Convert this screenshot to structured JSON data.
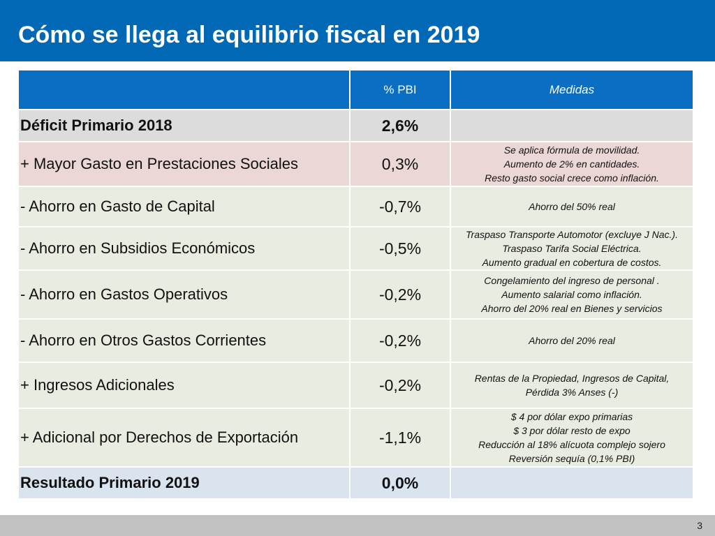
{
  "slide": {
    "title": "Cómo se llega al equilibrio fiscal en 2019",
    "page_number": "3"
  },
  "table": {
    "header": {
      "col1": "",
      "col2": "% PBI",
      "col3": "Medidas"
    },
    "rows": [
      {
        "label": "Déficit Primario 2018",
        "value": "2,6%",
        "medidas": [],
        "bold": true,
        "color": "#dcdcdc"
      },
      {
        "label": "+ Mayor Gasto en Prestaciones Sociales",
        "value": "0,3%",
        "medidas": [
          "Se aplica fórmula de movilidad.",
          "Aumento de 2% en cantidades.",
          "Resto gasto social crece como inflación."
        ],
        "bold": false,
        "color": "#ecd7d7"
      },
      {
        "label": "- Ahorro en Gasto de Capital",
        "value": "-0,7%",
        "medidas": [
          "Ahorro del 50% real"
        ],
        "bold": false,
        "color": "#e9ece0"
      },
      {
        "label": "- Ahorro en Subsidios Económicos",
        "value": "-0,5%",
        "medidas": [
          "Traspaso Transporte Automotor (excluye J Nac.).",
          "Traspaso Tarifa Social Eléctrica.",
          "Aumento gradual en cobertura de costos."
        ],
        "bold": false,
        "color": "#e9ece0"
      },
      {
        "label": "- Ahorro en Gastos Operativos",
        "value": "-0,2%",
        "medidas": [
          "Congelamiento del ingreso de personal .",
          "Aumento salarial como inflación.",
          "Ahorro del 20% real en Bienes y servicios"
        ],
        "bold": false,
        "color": "#e9ece0"
      },
      {
        "label": "- Ahorro en Otros Gastos Corrientes",
        "value": "-0,2%",
        "medidas": [
          "Ahorro del 20% real"
        ],
        "bold": false,
        "color": "#e9ece0"
      },
      {
        "label": "+ Ingresos Adicionales",
        "value": "-0,2%",
        "medidas": [
          "Rentas de la Propiedad, Ingresos de Capital,",
          "Pérdida 3% Anses (-)"
        ],
        "bold": false,
        "color": "#e9ece0"
      },
      {
        "label": "+ Adicional por Derechos de Exportación",
        "value": "-1,1%",
        "medidas": [
          "$ 4 por dólar expo primarias",
          "$ 3 por dólar resto de expo",
          "Reducción al 18% alícuota complejo sojero",
          "Reversión sequía (0,1% PBI)"
        ],
        "bold": false,
        "color": "#e9ece0"
      },
      {
        "label": "Resultado Primario 2019",
        "value": "0,0%",
        "medidas": [],
        "bold": true,
        "color": "#d9e4ef"
      }
    ]
  },
  "colors": {
    "title_bar": "#0068b4",
    "header_cells": "#0a6fc2",
    "footer_bar": "#c2c2c2"
  }
}
